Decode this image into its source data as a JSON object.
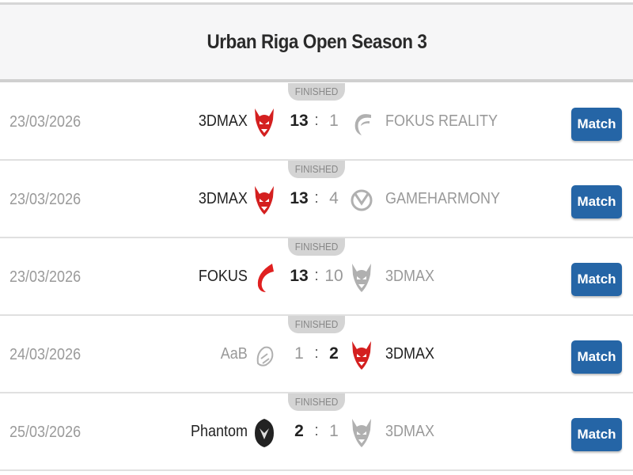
{
  "title": "Urban Riga Open Season 3",
  "colors": {
    "button": "#2565a6",
    "winner_logo": "#d42020",
    "loser_logo": "#b0b0b0"
  },
  "matches": [
    {
      "status": "FINISHED",
      "date": "23/03/2026",
      "team1": "3DMAX",
      "score1": "13",
      "team2": "FOKUS REALITY",
      "score2": "1",
      "winner": 1,
      "logo1": "3dmax-devil-icon",
      "logo2": "fokus-reality-icon",
      "button": "Match"
    },
    {
      "status": "FINISHED",
      "date": "23/03/2026",
      "team1": "3DMAX",
      "score1": "13",
      "team2": "GAMEHARMONY",
      "score2": "4",
      "winner": 1,
      "logo1": "3dmax-devil-icon",
      "logo2": "gameharmony-icon",
      "button": "Match"
    },
    {
      "status": "FINISHED",
      "date": "23/03/2026",
      "team1": "FOKUS",
      "score1": "13",
      "team2": "3DMAX",
      "score2": "10",
      "winner": 1,
      "logo1": "fokus-flame-icon",
      "logo2": "3dmax-devil-icon",
      "button": "Match"
    },
    {
      "status": "FINISHED",
      "date": "24/03/2026",
      "team1": "AaB",
      "score1": "1",
      "team2": "3DMAX",
      "score2": "2",
      "winner": 2,
      "logo1": "aab-icon",
      "logo2": "3dmax-devil-icon",
      "button": "Match"
    },
    {
      "status": "FINISHED",
      "date": "25/03/2026",
      "team1": "Phantom",
      "score1": "2",
      "team2": "3DMAX",
      "score2": "1",
      "winner": 1,
      "logo1": "phantom-icon",
      "logo2": "3dmax-devil-icon",
      "button": "Match"
    }
  ]
}
